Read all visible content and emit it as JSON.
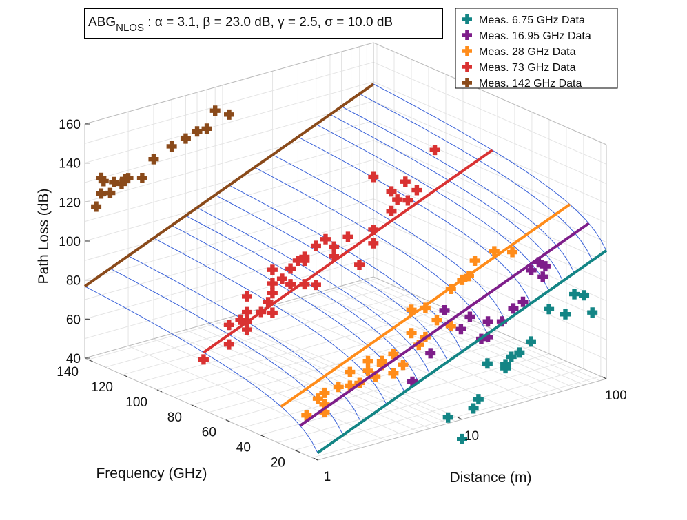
{
  "chart_data": {
    "type": "scatter3d",
    "annotation": {
      "prefix": "ABG",
      "subscript": "NLOS",
      "rest": " : α = 3.1, β = 23.0 dB, γ = 2.5, σ = 10.0 dB"
    },
    "model": {
      "alpha": 3.1,
      "beta_db": 23.0,
      "gamma": 2.5,
      "sigma_db": 10.0
    },
    "xlabel": "Distance (m)",
    "ylabel": "Frequency (GHz)",
    "zlabel": "Path Loss (dB)",
    "xscale": "log",
    "xlim": [
      1,
      100
    ],
    "ylim": [
      6.75,
      142
    ],
    "zlim": [
      40,
      160
    ],
    "xticks": [
      1,
      10,
      100
    ],
    "xticklabels": [
      "1",
      "10",
      "100"
    ],
    "yticks": [
      20,
      40,
      60,
      80,
      100,
      120,
      140
    ],
    "yticklabels": [
      "20",
      "40",
      "60",
      "80",
      "100",
      "120",
      "140"
    ],
    "zticks": [
      40,
      60,
      80,
      100,
      120,
      140,
      160
    ],
    "zticklabels": [
      "40",
      "60",
      "80",
      "100",
      "120",
      "140",
      "160"
    ],
    "grid": true,
    "legend_position": "top-right",
    "surface_color": "#3a62d9",
    "series": [
      {
        "name": "Meas. 6.75 GHz  Data",
        "freq_ghz": 6.75,
        "color": "#138585",
        "points": [
          [
            40,
            84
          ],
          [
            52,
            79
          ],
          [
            60,
            88
          ],
          [
            70,
            86
          ],
          [
            80,
            76
          ],
          [
            30,
            70
          ],
          [
            25,
            66
          ],
          [
            22,
            65
          ],
          [
            20,
            62
          ],
          [
            20,
            60
          ],
          [
            15,
            65
          ],
          [
            13,
            48
          ],
          [
            12,
            44
          ],
          [
            8,
            43
          ],
          [
            10,
            30
          ]
        ]
      },
      {
        "name": "Meas. 16.95 GHz  Data",
        "freq_ghz": 16.95,
        "color": "#7e1e8a",
        "points": [
          [
            50,
            100
          ],
          [
            48,
            95
          ],
          [
            45,
            103
          ],
          [
            40,
            100
          ],
          [
            35,
            85
          ],
          [
            30,
            83
          ],
          [
            20,
            80
          ],
          [
            15,
            85
          ],
          [
            18,
            72
          ],
          [
            25,
            78
          ],
          [
            20,
            72
          ],
          [
            13,
            80
          ],
          [
            8,
            72
          ],
          [
            10,
            92
          ],
          [
            6,
            60
          ]
        ]
      },
      {
        "name": "Meas. 28 GHz  Data",
        "freq_ghz": 28,
        "color": "#ff8c1a",
        "points": [
          [
            40,
            105
          ],
          [
            30,
            108
          ],
          [
            22,
            106
          ],
          [
            20,
            99
          ],
          [
            18,
            98
          ],
          [
            15,
            95
          ],
          [
            10,
            89
          ],
          [
            8,
            90
          ],
          [
            12,
            81
          ],
          [
            15,
            76
          ],
          [
            10,
            74
          ],
          [
            8,
            78
          ],
          [
            5,
            68
          ],
          [
            6,
            70
          ],
          [
            4,
            70
          ],
          [
            3,
            67
          ],
          [
            3,
            60
          ],
          [
            2,
            60
          ],
          [
            2.5,
            61
          ],
          [
            1.8,
            58
          ],
          [
            2,
            54
          ],
          [
            1.5,
            51
          ],
          [
            5,
            66
          ],
          [
            7,
            63
          ],
          [
            6,
            60
          ],
          [
            4,
            65
          ],
          [
            4.5,
            61
          ],
          [
            2,
            50
          ],
          [
            3.5,
            60
          ],
          [
            9,
            71
          ]
        ]
      },
      {
        "name": "Meas. 73 GHz  Data",
        "freq_ghz": 73,
        "color": "#d93232",
        "points": [
          [
            40,
            140
          ],
          [
            15,
            135
          ],
          [
            20,
            125
          ],
          [
            25,
            128
          ],
          [
            30,
            122
          ],
          [
            26,
            118
          ],
          [
            20,
            115
          ],
          [
            15,
            108
          ],
          [
            10,
            108
          ],
          [
            8,
            105
          ],
          [
            6,
            108
          ],
          [
            5,
            104
          ],
          [
            4,
            100
          ],
          [
            3,
            102
          ],
          [
            4,
            92
          ],
          [
            5,
            90
          ],
          [
            6,
            88
          ],
          [
            3,
            90
          ],
          [
            2,
            92
          ],
          [
            2,
            84
          ],
          [
            2.5,
            82
          ],
          [
            3,
            80
          ],
          [
            2,
            79
          ],
          [
            1.8,
            81
          ],
          [
            1.5,
            80
          ],
          [
            1.5,
            70
          ],
          [
            2,
            75
          ],
          [
            1,
            66
          ],
          [
            3,
            95
          ],
          [
            5,
            102
          ],
          [
            7,
            110
          ],
          [
            8,
            100
          ],
          [
            3.5,
            96
          ],
          [
            4.5,
            103
          ],
          [
            12,
            92
          ],
          [
            15,
            101
          ],
          [
            2.8,
            86
          ],
          [
            22,
            120
          ]
        ]
      },
      {
        "name": "Meas. 142 GHz  Data",
        "freq_ghz": 142,
        "color": "#8a4a1a",
        "points": [
          [
            8,
            148
          ],
          [
            10,
            144
          ],
          [
            6,
            140
          ],
          [
            5,
            138
          ],
          [
            4,
            136
          ],
          [
            3,
            132
          ],
          [
            2.5,
            124
          ],
          [
            2,
            126
          ],
          [
            1.5,
            121
          ],
          [
            1.6,
            126
          ],
          [
            1.3,
            122
          ],
          [
            1.2,
            116
          ],
          [
            1.3,
            130
          ],
          [
            1.35,
            128
          ],
          [
            1.8,
            124
          ],
          [
            1.9,
            126
          ],
          [
            7,
            140
          ]
        ]
      }
    ]
  }
}
